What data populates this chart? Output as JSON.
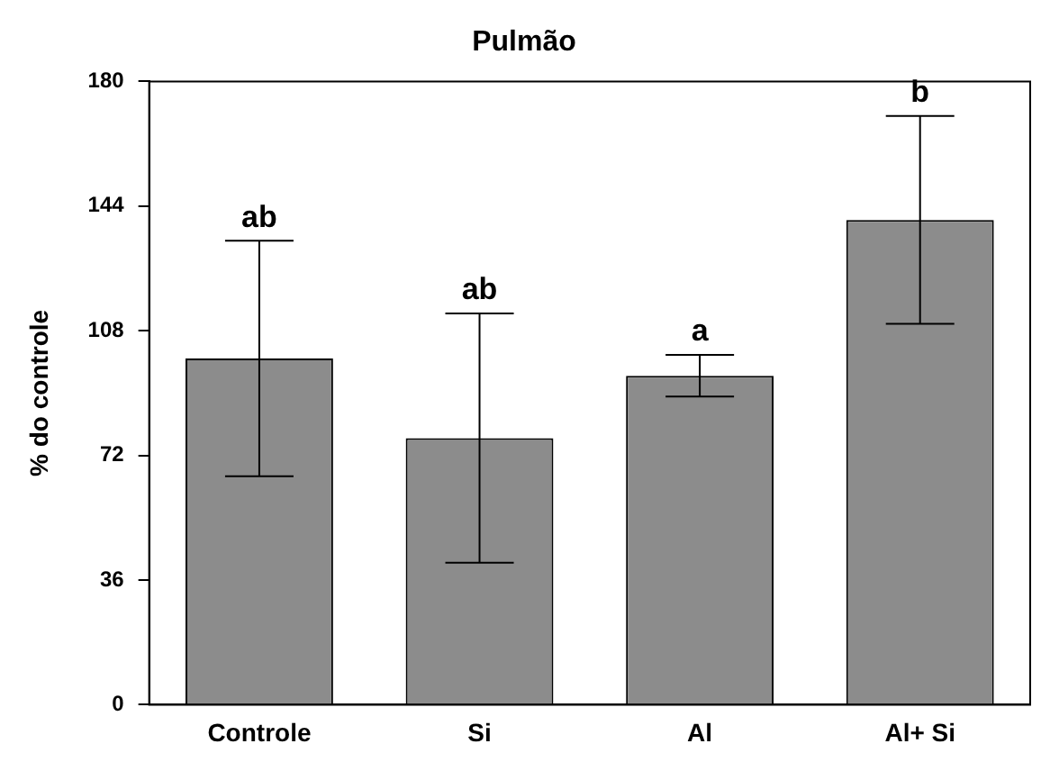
{
  "chart_data": {
    "type": "bar",
    "title": "Pulmão",
    "ylabel": "% do controle",
    "categories": [
      "Controle",
      "Si",
      "Al",
      "Al+ Si"
    ],
    "values": [
      100,
      77,
      95,
      140
    ],
    "errors": [
      34,
      36,
      6,
      30
    ],
    "color": "#8c8c8c",
    "ylim": [
      0,
      180
    ],
    "yticks": [
      0,
      36,
      72,
      108,
      144,
      180
    ],
    "grid": false,
    "legend": false,
    "annotations": [
      {
        "text": "ab",
        "x": "Controle",
        "y": 134
      },
      {
        "text": "ab",
        "x": "Si",
        "y": 113
      },
      {
        "text": "a",
        "x": "Al",
        "y": 101
      },
      {
        "text": "b",
        "x": "Al+ Si",
        "y": 170
      }
    ]
  }
}
